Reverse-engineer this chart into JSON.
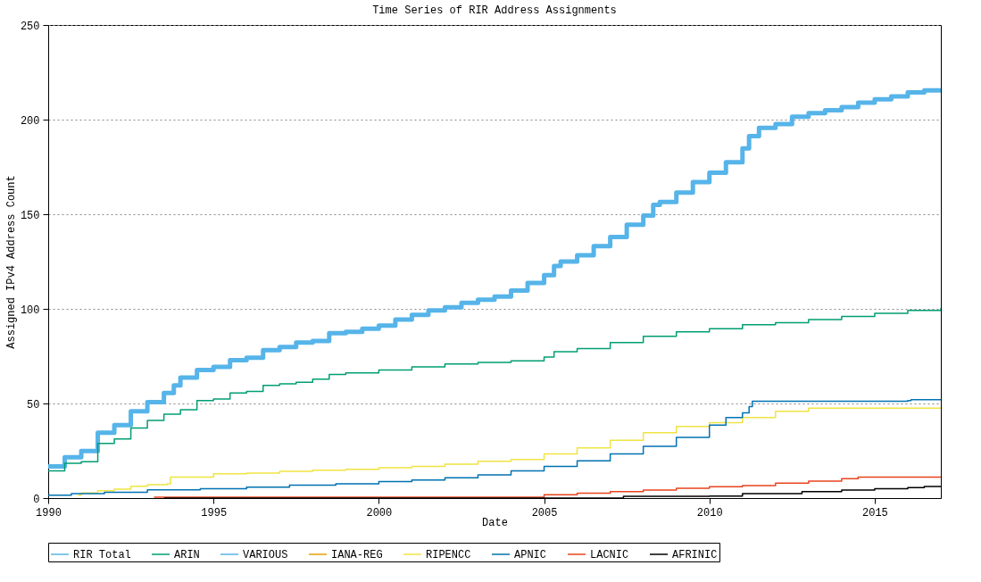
{
  "chart_data": {
    "type": "step",
    "title": "Time Series of RIR Address Assignments",
    "xlabel": "Date",
    "ylabel": "Assigned IPv4 Address Count",
    "xlim": [
      1990,
      2017
    ],
    "xticks": [
      1990,
      1995,
      2000,
      2005,
      2010,
      2015
    ],
    "ylim": [
      0,
      250
    ],
    "yticks": [
      0,
      50,
      100,
      150,
      200,
      250
    ],
    "grid": "y",
    "legend": "bottom",
    "line_style": "solid",
    "marker": "none",
    "series": [
      {
        "name": "RIR Total",
        "color": "#56b4e9",
        "x": [
          1990,
          1990.5,
          1991,
          1991.5,
          1992,
          1992.5,
          1993,
          1993.5,
          1993.8,
          1994,
          1994.5,
          1995,
          1995.5,
          1996,
          1996.5,
          1997,
          1997.5,
          1998,
          1998.5,
          1999,
          1999.5,
          2000,
          2000.5,
          2001,
          2001.5,
          2002,
          2002.5,
          2003,
          2003.5,
          2004,
          2004.5,
          2005,
          2005.3,
          2005.5,
          2006,
          2006.5,
          2007,
          2007.5,
          2008,
          2008.3,
          2008.5,
          2009,
          2009.5,
          2010,
          2010.5,
          2011,
          2011.2,
          2011.5,
          2012,
          2012.5,
          2013,
          2013.5,
          2014,
          2014.5,
          2015,
          2015.5,
          2016,
          2016.5,
          2017
        ],
        "values": [
          16.8,
          21.6,
          24.9,
          34.6,
          38.6,
          45.9,
          50.7,
          55.6,
          59.6,
          63.7,
          67.7,
          69.3,
          72.9,
          74.2,
          78.2,
          79.8,
          82.2,
          83,
          87.1,
          87.9,
          89.5,
          91.1,
          94.3,
          96.8,
          99.2,
          100.8,
          103.2,
          104.8,
          106.5,
          109.7,
          113.7,
          117.8,
          122.6,
          125,
          128.3,
          133.1,
          138,
          144.4,
          149.3,
          154.9,
          156.5,
          161.4,
          167,
          171.9,
          177.5,
          184.8,
          191.3,
          195.6,
          197.7,
          201.5,
          203.4,
          205,
          206.6,
          209,
          210.7,
          212.3,
          214.4,
          215.5,
          216.3
        ]
      },
      {
        "name": "ARIN",
        "color": "#009e73",
        "x": [
          1990,
          1990.5,
          1991,
          1991.5,
          1992,
          1992.5,
          1993,
          1993.5,
          1994,
          1994.5,
          1995,
          1995.5,
          1996,
          1996.5,
          1997,
          1997.5,
          1998,
          1998.5,
          1999,
          2000,
          2001,
          2002,
          2003,
          2004,
          2005,
          2005.3,
          2006,
          2007,
          2008,
          2009,
          2010,
          2011,
          2012,
          2013,
          2014,
          2015,
          2016,
          2017
        ],
        "values": [
          14.4,
          18.4,
          19.2,
          28.9,
          31.3,
          37,
          41,
          44.3,
          46.7,
          51.5,
          52.3,
          55.6,
          56.4,
          59.6,
          60.4,
          61.2,
          62.8,
          65.3,
          66.1,
          67.7,
          69.3,
          70.9,
          71.7,
          72.5,
          74.5,
          77.4,
          79,
          82.2,
          85.5,
          87.9,
          89.5,
          91.6,
          92.7,
          94.3,
          96,
          97.6,
          99.2,
          100.3
        ]
      },
      {
        "name": "VARIOUS",
        "color": "#56b4e9"
      },
      {
        "name": "IANA-REG",
        "color": "#e69f00"
      },
      {
        "name": "RIPENCC",
        "color": "#f0e442",
        "x": [
          1990.9,
          1991,
          1991.5,
          1992,
          1992.5,
          1993,
          1993.6,
          1993.7,
          1995,
          1996,
          1997,
          1998,
          1999,
          2000,
          2001,
          2002,
          2003,
          2004,
          2005,
          2006,
          2007,
          2008,
          2009,
          2010,
          2011,
          2012,
          2013,
          2017
        ],
        "values": [
          1.5,
          2.7,
          3.9,
          4.7,
          6.3,
          7.1,
          7.6,
          11.1,
          12.8,
          13.2,
          14.1,
          14.7,
          15.2,
          16,
          16.8,
          17.9,
          19.5,
          20.4,
          23.3,
          26.5,
          30.5,
          34.6,
          37.8,
          39.9,
          42.6,
          45.9,
          47.5,
          48
        ]
      },
      {
        "name": "APNIC",
        "color": "#0072b2",
        "x": [
          1990,
          1990.7,
          1991.7,
          1993,
          1994.6,
          1996,
          1997.3,
          1998.7,
          2000,
          2001,
          2002,
          2003,
          2004,
          2005,
          2006,
          2007,
          2008,
          2009,
          2010,
          2010.5,
          2011,
          2011.2,
          2011.3,
          2016,
          2016.1,
          2017
        ],
        "values": [
          1.5,
          2.3,
          3.1,
          4.4,
          5,
          5.8,
          6.8,
          7.6,
          8.7,
          9.5,
          10.7,
          12.3,
          14.4,
          16.8,
          19.7,
          23.3,
          27.3,
          32.1,
          38.6,
          42.6,
          45.1,
          48.3,
          51.2,
          51.5,
          52,
          52
        ]
      },
      {
        "name": "LACNIC",
        "color": "#e8441e",
        "x": [
          1993.2,
          2005,
          2006,
          2007,
          2008,
          2009,
          2010,
          2011,
          2012,
          2013,
          2014,
          2014.5,
          2017
        ],
        "values": [
          0.5,
          1.8,
          2.6,
          3.4,
          4.2,
          5.2,
          6,
          6.6,
          7.9,
          9,
          10.3,
          11.1,
          11.1
        ]
      },
      {
        "name": "AFRINIC",
        "color": "#000000",
        "x": [
          1993.5,
          2007.4,
          2010,
          2011,
          2012.8,
          2014,
          2015,
          2016,
          2016.5,
          2017
        ],
        "values": [
          0,
          1,
          1.1,
          2.3,
          3.4,
          4.2,
          5,
          5.5,
          6.1,
          6.1
        ]
      }
    ]
  }
}
